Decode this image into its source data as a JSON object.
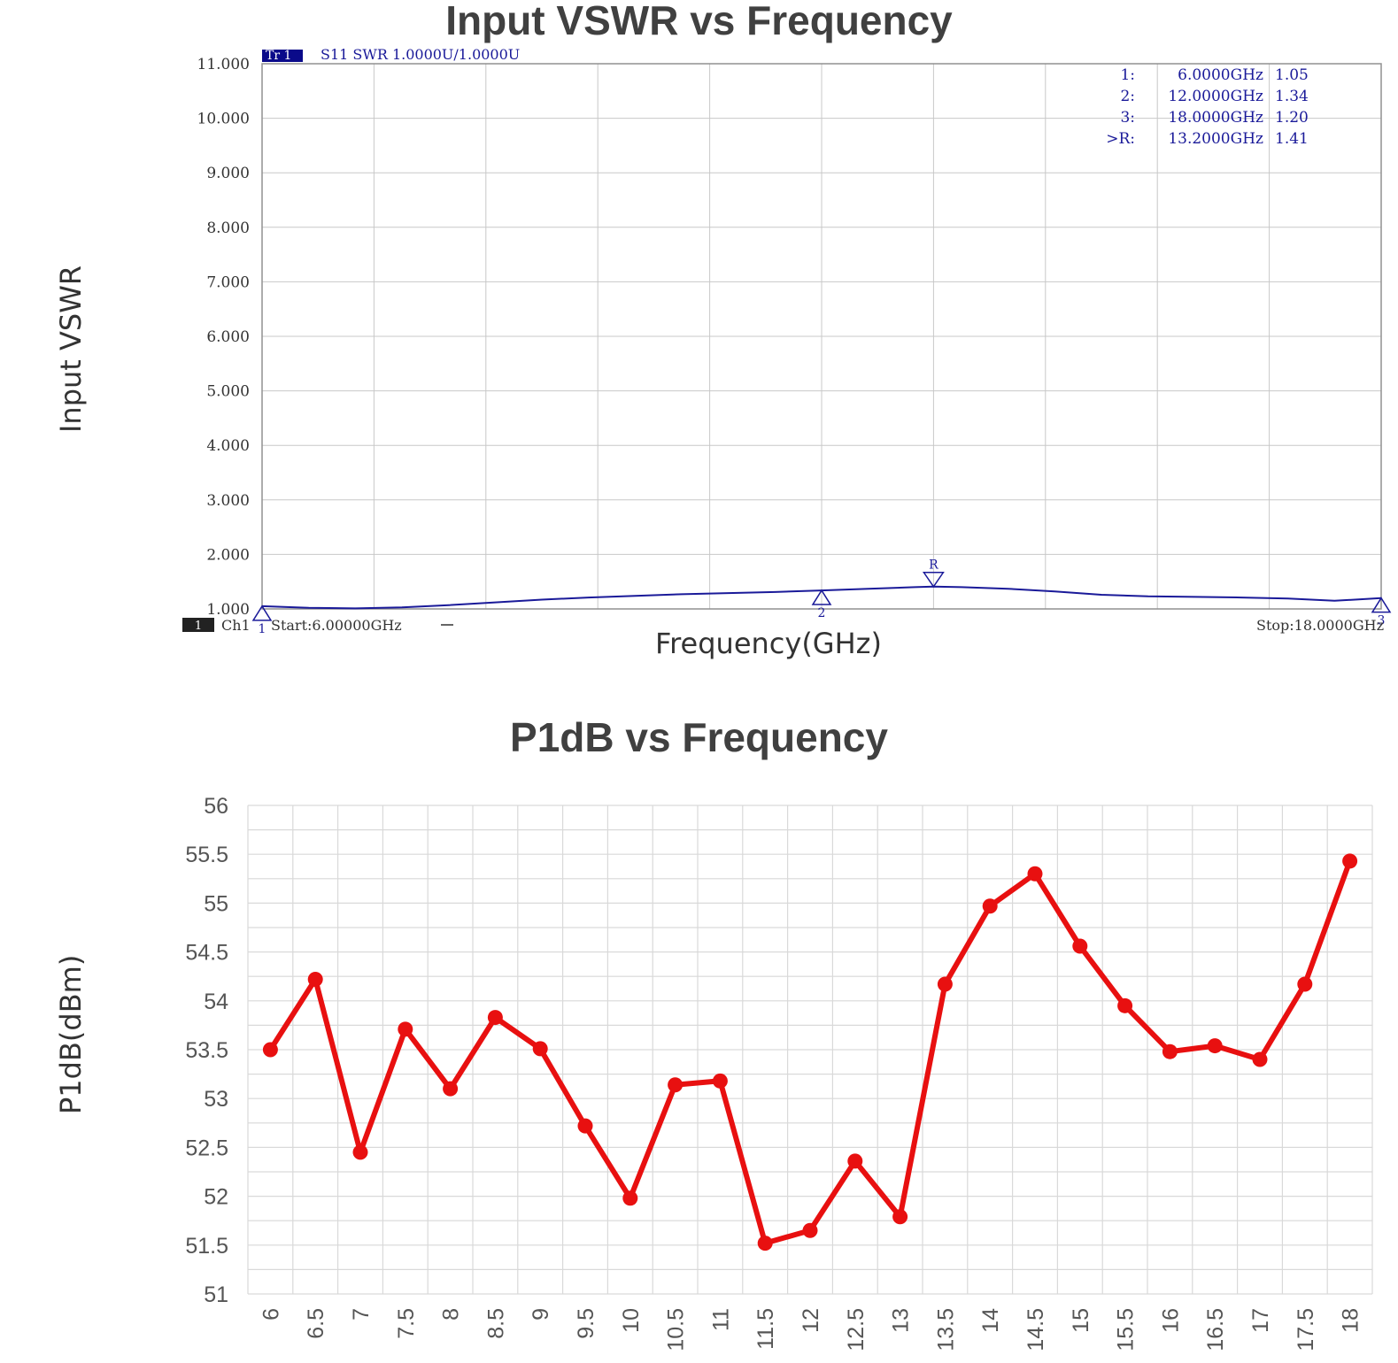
{
  "chart_data": [
    {
      "type": "line",
      "title": "Input VSWR vs Frequency",
      "ylabel": "Input VSWR",
      "xlabel": "Frequency(GHz)",
      "ylim": [
        1.0,
        11.0
      ],
      "xlim": [
        6.0,
        18.0
      ],
      "yticks": [
        "11.000",
        "10.000",
        "9.000",
        "8.000",
        "7.000",
        "6.000",
        "5.000",
        "4.000",
        "3.000",
        "2.000",
        "1.000"
      ],
      "grid": true,
      "trace_label": "Tr 1",
      "trace_desc": "S11  SWR 1.0000U/1.0000U",
      "channel_num": "1",
      "channel": "Ch1",
      "start_label": "Start:6.00000GHz",
      "stop_label": "Stop:18.0000GHz",
      "line_color": "#1a1a99",
      "markers": [
        {
          "id": "1:",
          "freq": "6.0000GHz",
          "value": "1.05",
          "marker_label": "1",
          "x": 6.0,
          "y": 1.05
        },
        {
          "id": "2:",
          "freq": "12.0000GHz",
          "value": "1.34",
          "marker_label": "2",
          "x": 12.0,
          "y": 1.34
        },
        {
          "id": "3:",
          "freq": "18.0000GHz",
          "value": "1.20",
          "marker_label": "3",
          "x": 18.0,
          "y": 1.2
        },
        {
          "id": ">R:",
          "freq": "13.2000GHz",
          "value": "1.41",
          "marker_label": "R",
          "x": 13.2,
          "y": 1.41
        }
      ],
      "series": [
        {
          "x": [
            6.0,
            6.5,
            7.0,
            7.5,
            8.0,
            8.5,
            9.0,
            9.5,
            10.0,
            10.5,
            11.0,
            11.5,
            12.0,
            12.5,
            13.0,
            13.2,
            13.5,
            14.0,
            14.5,
            15.0,
            15.5,
            16.0,
            16.5,
            17.0,
            17.5,
            18.0
          ],
          "y": [
            1.05,
            1.02,
            1.01,
            1.03,
            1.07,
            1.12,
            1.17,
            1.21,
            1.24,
            1.27,
            1.29,
            1.31,
            1.34,
            1.37,
            1.4,
            1.41,
            1.4,
            1.37,
            1.32,
            1.26,
            1.23,
            1.22,
            1.21,
            1.19,
            1.15,
            1.2
          ]
        }
      ]
    },
    {
      "type": "line",
      "title": "P1dB vs Frequency",
      "ylabel": "P1dB(dBm)",
      "xlabel": "",
      "ylim": [
        51,
        56
      ],
      "yticks": [
        "56",
        "55.5",
        "55",
        "54.5",
        "54",
        "53.5",
        "53",
        "52.5",
        "52",
        "51.5",
        "51"
      ],
      "grid": true,
      "line_color": "#e81010",
      "categories": [
        "6",
        "6.5",
        "7",
        "7.5",
        "8",
        "8.5",
        "9",
        "9.5",
        "10",
        "10.5",
        "11",
        "11.5",
        "12",
        "12.5",
        "13",
        "13.5",
        "14",
        "14.5",
        "15",
        "15.5",
        "16",
        "16.5",
        "17",
        "17.5",
        "18"
      ],
      "series": [
        {
          "values": [
            53.5,
            54.22,
            52.45,
            53.71,
            53.1,
            53.83,
            53.51,
            52.72,
            51.98,
            53.14,
            53.18,
            51.52,
            51.65,
            52.36,
            51.79,
            54.17,
            54.97,
            55.3,
            54.56,
            53.95,
            53.48,
            53.54,
            53.4,
            54.17,
            55.43
          ]
        }
      ]
    }
  ]
}
